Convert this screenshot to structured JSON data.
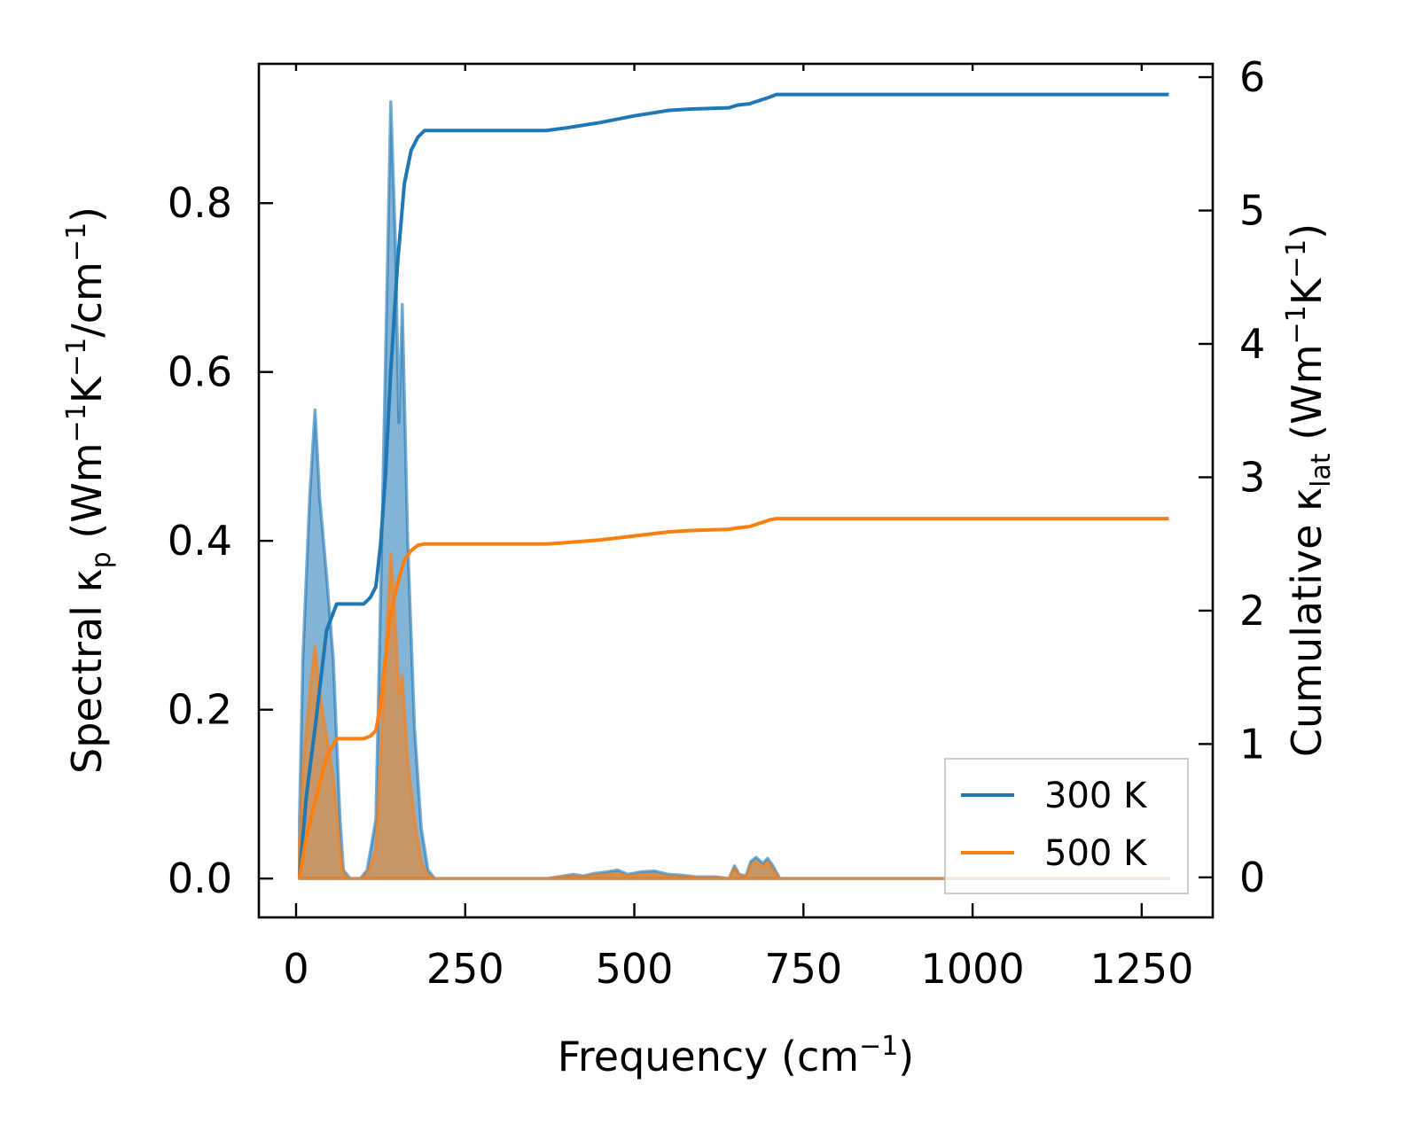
{
  "chart_data": {
    "type": "line",
    "xlabel": {
      "main": "Frequency (cm",
      "sup": "−1",
      "end": ")"
    },
    "ylabel_left": {
      "pre": "Spectral κ",
      "sub": "p",
      "post": " (Wm",
      "sup1": "−1",
      "mid": "K",
      "sup2": "−1",
      "mid2": "/cm",
      "sup3": "−1",
      "end": ")"
    },
    "ylabel_right": {
      "pre": "Cumulative κ",
      "sub": "lat",
      "post": " (Wm",
      "sup1": "−1",
      "mid": "K",
      "sup2": "−1",
      "end": ")"
    },
    "xlim": [
      -55,
      1355
    ],
    "ylim_left": [
      -0.046,
      0.965
    ],
    "ylim_right": [
      -0.3,
      6.1
    ],
    "x_ticks": [
      0,
      250,
      500,
      750,
      1000,
      1250
    ],
    "x_tick_labels": [
      "0",
      "250",
      "500",
      "750",
      "1000",
      "1250"
    ],
    "y_left_ticks": [
      0.0,
      0.2,
      0.4,
      0.6,
      0.8
    ],
    "y_left_tick_labels": [
      "0.0",
      "0.2",
      "0.4",
      "0.6",
      "0.8"
    ],
    "y_right_ticks": [
      0,
      1,
      2,
      3,
      4,
      5,
      6
    ],
    "y_right_tick_labels": [
      "0",
      "1",
      "2",
      "3",
      "4",
      "5",
      "6"
    ],
    "legend": {
      "placement": "lower-right",
      "entries": [
        "300 K",
        "500 K"
      ]
    },
    "colors": {
      "300 K": "#1f77b4",
      "500 K": "#ff7f0e"
    },
    "series": [
      {
        "name": "300 K",
        "spectral": {
          "x": [
            5,
            10,
            20,
            28,
            35,
            45,
            55,
            65,
            70,
            80,
            95,
            105,
            118,
            128,
            140,
            147,
            152,
            157,
            165,
            175,
            185,
            195,
            205,
            370,
            395,
            410,
            425,
            440,
            460,
            475,
            490,
            510,
            530,
            550,
            570,
            590,
            620,
            640,
            648,
            655,
            665,
            672,
            680,
            690,
            697,
            705,
            715,
            1290
          ],
          "y": [
            0.07,
            0.26,
            0.45,
            0.555,
            0.45,
            0.36,
            0.26,
            0.07,
            0.01,
            0.0,
            0.0,
            0.01,
            0.07,
            0.45,
            0.92,
            0.75,
            0.54,
            0.68,
            0.4,
            0.18,
            0.06,
            0.01,
            0.0,
            0.0,
            0.003,
            0.005,
            0.003,
            0.006,
            0.008,
            0.01,
            0.005,
            0.008,
            0.009,
            0.005,
            0.004,
            0.002,
            0.002,
            0.0,
            0.015,
            0.005,
            0.003,
            0.02,
            0.025,
            0.018,
            0.024,
            0.015,
            0.0,
            0.0
          ]
        },
        "cumulative": {
          "x": [
            5,
            15,
            30,
            45,
            60,
            100,
            110,
            118,
            125,
            132,
            140,
            150,
            160,
            170,
            180,
            190,
            220,
            300,
            370,
            400,
            450,
            500,
            550,
            580,
            640,
            652,
            670,
            700,
            710,
            1290
          ],
          "y": [
            0,
            0.6,
            1.2,
            1.85,
            2.05,
            2.05,
            2.1,
            2.18,
            2.5,
            3.0,
            3.8,
            4.6,
            5.2,
            5.45,
            5.55,
            5.6,
            5.6,
            5.6,
            5.6,
            5.62,
            5.66,
            5.71,
            5.75,
            5.76,
            5.77,
            5.79,
            5.8,
            5.85,
            5.87,
            5.87
          ]
        }
      },
      {
        "name": "500 K",
        "spectral": {
          "x": [
            5,
            10,
            20,
            28,
            35,
            45,
            55,
            65,
            70,
            80,
            95,
            105,
            118,
            128,
            140,
            147,
            152,
            157,
            165,
            175,
            185,
            195,
            205,
            370,
            395,
            410,
            425,
            440,
            460,
            475,
            490,
            510,
            530,
            550,
            570,
            590,
            620,
            640,
            648,
            655,
            665,
            672,
            680,
            690,
            697,
            705,
            715,
            1290
          ],
          "y": [
            0.04,
            0.13,
            0.22,
            0.275,
            0.22,
            0.17,
            0.12,
            0.035,
            0.005,
            0.0,
            0.0,
            0.005,
            0.035,
            0.2,
            0.385,
            0.3,
            0.22,
            0.24,
            0.14,
            0.07,
            0.02,
            0.004,
            0.0,
            0.0,
            0.002,
            0.003,
            0.002,
            0.004,
            0.005,
            0.006,
            0.003,
            0.005,
            0.005,
            0.003,
            0.002,
            0.001,
            0.001,
            0.0,
            0.012,
            0.004,
            0.002,
            0.016,
            0.02,
            0.014,
            0.02,
            0.01,
            0.0,
            0.0
          ]
        },
        "cumulative": {
          "x": [
            5,
            15,
            30,
            45,
            60,
            100,
            110,
            118,
            125,
            132,
            140,
            150,
            160,
            170,
            180,
            190,
            220,
            300,
            370,
            400,
            450,
            500,
            550,
            580,
            640,
            652,
            670,
            700,
            710,
            1290
          ],
          "y": [
            0,
            0.3,
            0.6,
            0.9,
            1.04,
            1.04,
            1.06,
            1.1,
            1.3,
            1.65,
            1.98,
            2.2,
            2.38,
            2.45,
            2.49,
            2.5,
            2.5,
            2.5,
            2.5,
            2.51,
            2.53,
            2.56,
            2.59,
            2.6,
            2.61,
            2.62,
            2.63,
            2.68,
            2.69,
            2.69
          ]
        }
      }
    ]
  }
}
